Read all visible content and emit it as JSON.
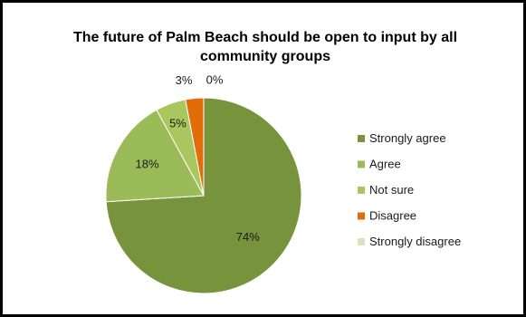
{
  "chart_data": {
    "type": "pie",
    "title": "The future of Palm Beach should be open to input by all community groups",
    "categories": [
      "Strongly agree",
      "Agree",
      "Not sure",
      "Disagree",
      "Strongly disagree"
    ],
    "values": [
      74,
      18,
      5,
      3,
      0
    ],
    "data_labels": [
      "74%",
      "18%",
      "5%",
      "3%",
      "0%"
    ],
    "colors": [
      "#77933c",
      "#9bbb59",
      "#a9c75e",
      "#e36c0a",
      "#d7e4bd"
    ],
    "legend": "right",
    "start_angle": "12 o'clock",
    "direction": "clockwise"
  }
}
